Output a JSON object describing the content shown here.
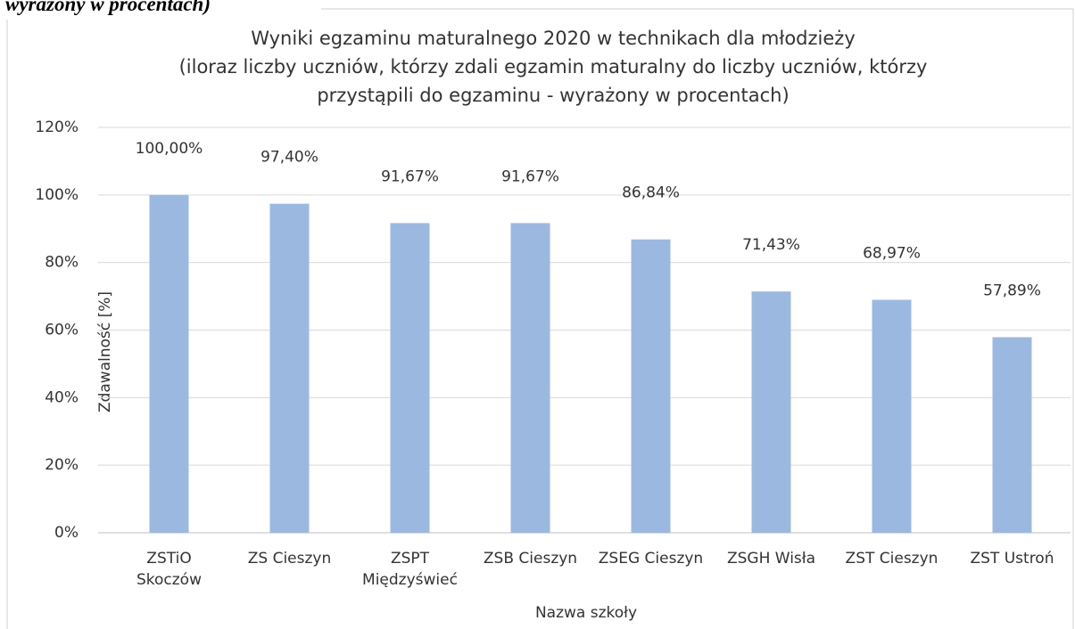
{
  "caption_fragment": "wyrażony w procentach)",
  "chart_data": {
    "type": "bar",
    "title": [
      "Wyniki egzaminu maturalnego 2020 w technikach dla młodzieży",
      "(iloraz liczby uczniów, którzy zdali egzamin maturalny do liczby uczniów, którzy",
      "przystąpili do egzaminu - wyrażony w procentach)"
    ],
    "x_label": "Nazwa szkoły",
    "y_label": "Zdawalność [%]",
    "categories": [
      [
        "ZSTiO",
        "Skoczów"
      ],
      [
        "ZS Cieszyn"
      ],
      [
        "ZSPT",
        "Międzyświeć"
      ],
      [
        "ZSB Cieszyn"
      ],
      [
        "ZSEG Cieszyn"
      ],
      [
        "ZSGH Wisła"
      ],
      [
        "ZST Cieszyn"
      ],
      [
        "ZST Ustroń"
      ]
    ],
    "values": [
      100,
      97.4,
      91.67,
      91.67,
      86.84,
      71.43,
      68.97,
      57.89
    ],
    "value_labels": [
      "100,00%",
      "97,40%",
      "91,67%",
      "91,67%",
      "86,84%",
      "71,43%",
      "68,97%",
      "57,89%"
    ],
    "color": "#9bb9e0",
    "ylim": [
      0,
      120
    ],
    "yticks": [
      {
        "value": 0,
        "label": "0%"
      },
      {
        "value": 20,
        "label": "20%"
      },
      {
        "value": 40,
        "label": "40%"
      },
      {
        "value": 60,
        "label": "60%"
      },
      {
        "value": 80,
        "label": "80%"
      },
      {
        "value": 100,
        "label": "100%"
      },
      {
        "value": 120,
        "label": "120%"
      }
    ],
    "grid": true
  }
}
